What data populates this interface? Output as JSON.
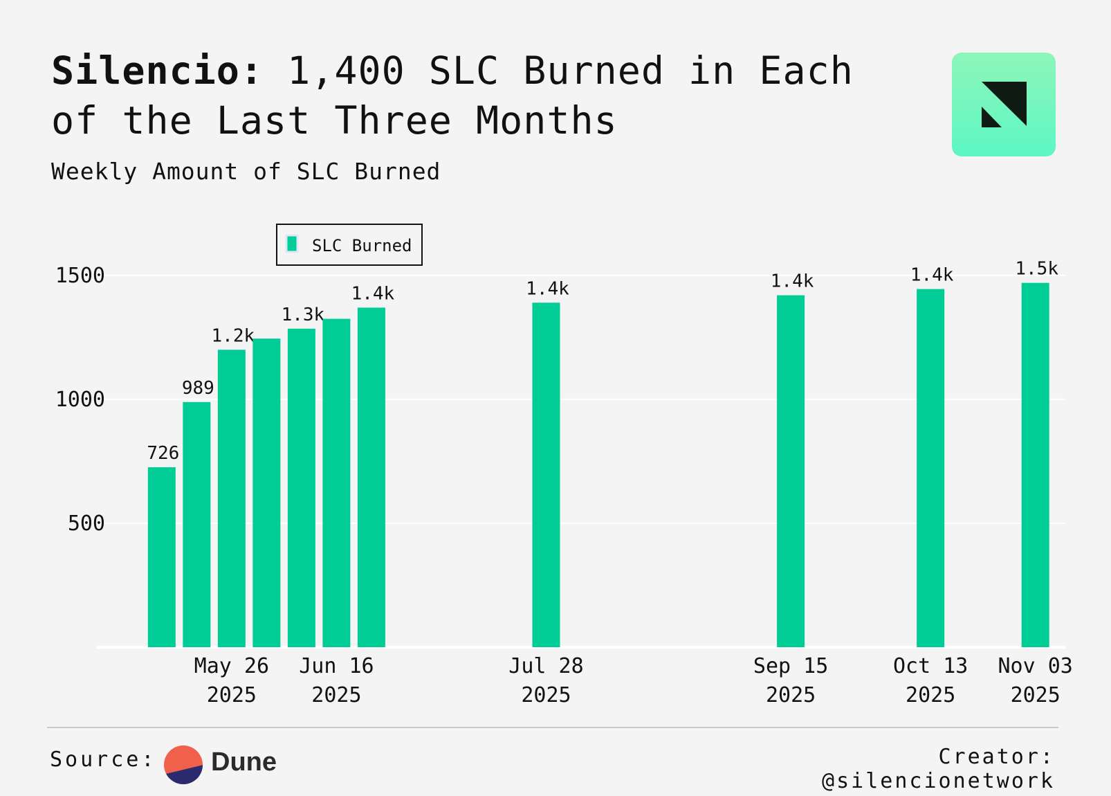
{
  "header": {
    "title_bold": "Silencio:",
    "title_rest": " 1,400 SLC Burned in Each of the Last Three Months",
    "subtitle": "Weekly Amount of SLC Burned"
  },
  "footer": {
    "source_label": "Source:",
    "source_name": "Dune",
    "creator": "Creator: @silencionetwork"
  },
  "colors": {
    "bar": "#00cc96",
    "background": "#f4f4f4",
    "logo": "#71f5be"
  },
  "chart_data": {
    "type": "bar",
    "title": "",
    "xlabel": "",
    "ylabel": "",
    "ylim": [
      0,
      1550
    ],
    "yticks": [
      500,
      1000,
      1500
    ],
    "xlim": [
      "2025-04-29",
      "2025-11-09"
    ],
    "grid": true,
    "legend": "top-left",
    "series": [
      {
        "name": "SLC Burned",
        "x": [
          "2025-05-12",
          "2025-05-19",
          "2025-05-26",
          "2025-06-02",
          "2025-06-09",
          "2025-06-16",
          "2025-06-23",
          "2025-07-28",
          "2025-09-15",
          "2025-10-13",
          "2025-11-03"
        ],
        "values": [
          726,
          989,
          1200,
          1245,
          1285,
          1325,
          1370,
          1390,
          1420,
          1445,
          1470
        ],
        "labels": [
          "726",
          "989",
          "1.2k",
          "",
          "1.3k",
          "",
          "1.4k",
          "1.4k",
          "1.4k",
          "1.4k",
          "1.5k"
        ]
      }
    ],
    "xticks": [
      {
        "date": "2025-05-26",
        "label": [
          "May 26",
          "2025"
        ]
      },
      {
        "date": "2025-06-16",
        "label": [
          "Jun 16",
          "2025"
        ]
      },
      {
        "date": "2025-07-28",
        "label": [
          "Jul 28",
          "2025"
        ]
      },
      {
        "date": "2025-09-15",
        "label": [
          "Sep 15",
          "2025"
        ]
      },
      {
        "date": "2025-10-13",
        "label": [
          "Oct 13",
          "2025"
        ]
      },
      {
        "date": "2025-11-03",
        "label": [
          "Nov 03",
          "2025"
        ]
      }
    ]
  }
}
